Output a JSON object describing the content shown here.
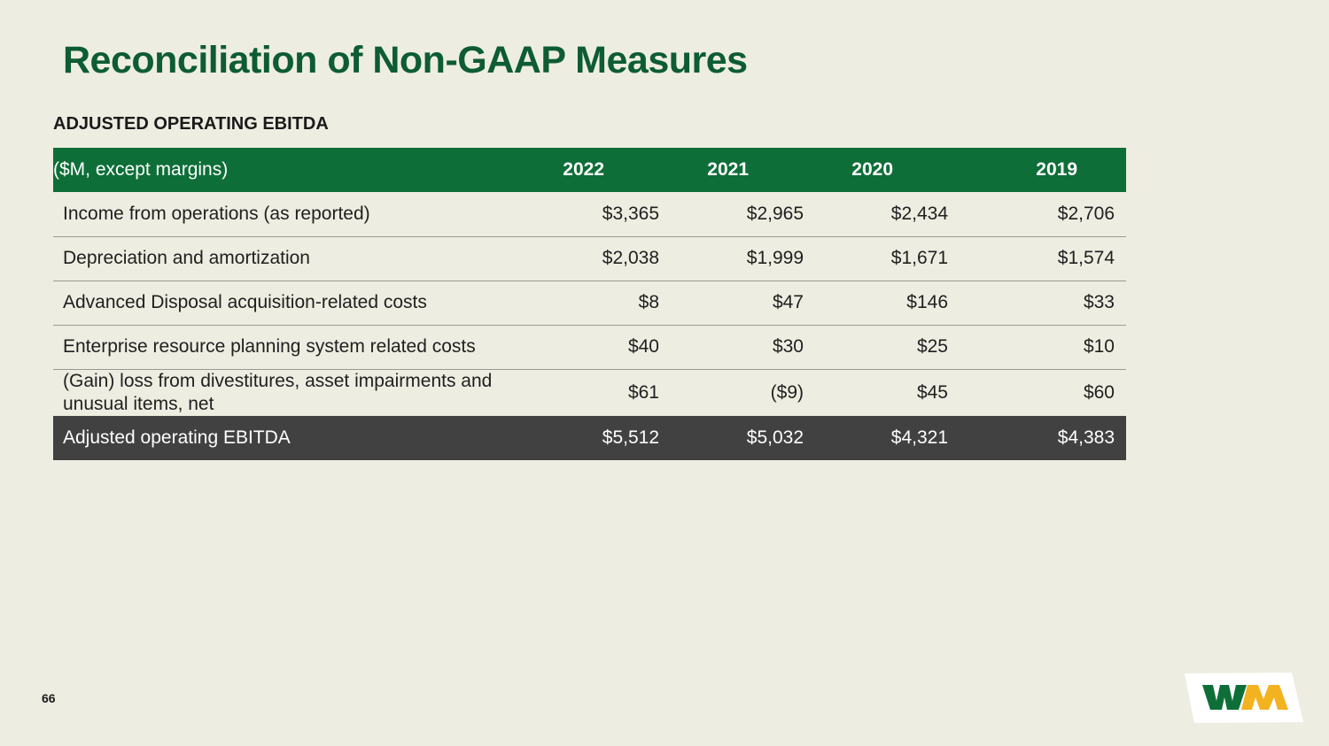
{
  "slide": {
    "title": "Reconciliation of Non-GAAP Measures",
    "subtitle": "ADJUSTED OPERATING EBITDA",
    "page_number": "66"
  },
  "table": {
    "header": {
      "label": "($M, except margins)",
      "years": [
        "2022",
        "2021",
        "2020",
        "2019"
      ]
    },
    "rows": [
      {
        "label": "Income from operations (as reported)",
        "values": [
          "$3,365",
          "$2,965",
          "$2,434",
          "$2,706"
        ]
      },
      {
        "label": "Depreciation and amortization",
        "values": [
          "$2,038",
          "$1,999",
          "$1,671",
          "$1,574"
        ]
      },
      {
        "label": "Advanced Disposal acquisition-related costs",
        "values": [
          "$8",
          "$47",
          "$146",
          "$33"
        ]
      },
      {
        "label": "Enterprise resource planning system related costs",
        "values": [
          "$40",
          "$30",
          "$25",
          "$10"
        ]
      },
      {
        "label": "(Gain) loss from divestitures, asset impairments and unusual items, net",
        "values": [
          "$61",
          "($9)",
          "$45",
          "$60"
        ]
      }
    ],
    "total": {
      "label": "Adjusted operating EBITDA",
      "values": [
        "$5,512",
        "$5,032",
        "$4,321",
        "$4,383"
      ]
    }
  },
  "logo": {
    "text": "WM",
    "green": "#0e6e38",
    "yellow": "#f3b21f"
  },
  "colors": {
    "background": "#eeede1",
    "header_green": "#0e6e38",
    "title_green": "#0d5c33",
    "total_row": "#414141"
  }
}
